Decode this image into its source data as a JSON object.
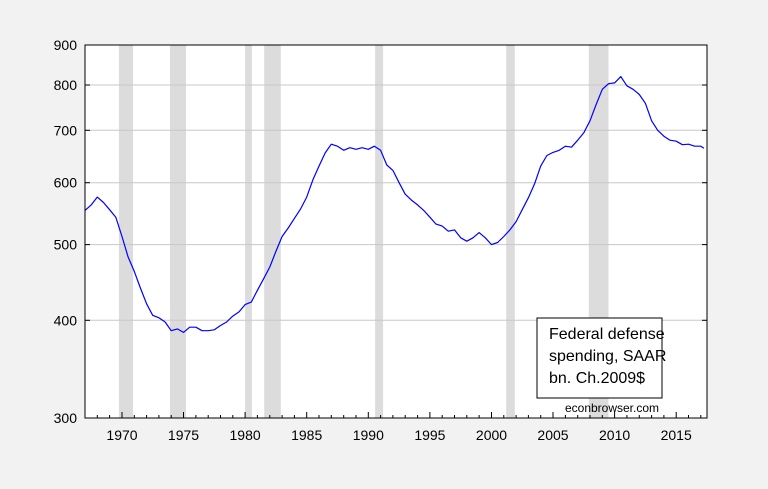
{
  "chart_data": {
    "type": "line",
    "scale_y": "log",
    "grid": "horizontal",
    "xlim": [
      1967,
      2017.5
    ],
    "ylim": [
      300,
      900
    ],
    "x_ticks": [
      1970,
      1975,
      1980,
      1985,
      1990,
      1995,
      2000,
      2005,
      2010,
      2015
    ],
    "y_ticks": [
      300,
      400,
      500,
      600,
      700,
      800,
      900
    ],
    "recessions": [
      [
        1969.75,
        1970.9
      ],
      [
        1973.9,
        1975.2
      ],
      [
        1980.0,
        1980.55
      ],
      [
        1981.55,
        1982.9
      ],
      [
        1990.55,
        1991.2
      ],
      [
        2001.2,
        2001.9
      ],
      [
        2007.9,
        2009.5
      ]
    ],
    "legend_lines": [
      "Federal defense",
      "spending, SAAR",
      "bn. Ch.2009$"
    ],
    "legend_position": "bottom-right",
    "source": "econbrowser.com",
    "line_color": "#0000ff",
    "recession_color": "#dcdcdc",
    "series": [
      {
        "x": [
          1967.0,
          1967.5,
          1968.0,
          1968.5,
          1969.0,
          1969.5,
          1970.0,
          1970.5,
          1971.0,
          1971.5,
          1972.0,
          1972.5,
          1973.0,
          1973.5,
          1974.0,
          1974.5,
          1975.0,
          1975.5,
          1976.0,
          1976.5,
          1977.0,
          1977.5,
          1978.0,
          1978.5,
          1979.0,
          1979.5,
          1980.0,
          1980.5,
          1981.0,
          1981.5,
          1982.0,
          1982.5,
          1983.0,
          1983.5,
          1984.0,
          1984.5,
          1985.0,
          1985.5,
          1986.0,
          1986.5,
          1987.0,
          1987.5,
          1988.0,
          1988.5,
          1989.0,
          1989.5,
          1990.0,
          1990.5,
          1991.0,
          1991.5,
          1992.0,
          1992.5,
          1993.0,
          1993.5,
          1994.0,
          1994.5,
          1995.0,
          1995.5,
          1996.0,
          1996.5,
          1997.0,
          1997.5,
          1998.0,
          1998.5,
          1999.0,
          1999.5,
          2000.0,
          2000.5,
          2001.0,
          2001.5,
          2002.0,
          2002.5,
          2003.0,
          2003.5,
          2004.0,
          2004.5,
          2005.0,
          2005.5,
          2006.0,
          2006.5,
          2007.0,
          2007.5,
          2008.0,
          2008.5,
          2009.0,
          2009.5,
          2010.0,
          2010.5,
          2011.0,
          2011.5,
          2012.0,
          2012.5,
          2013.0,
          2013.5,
          2014.0,
          2014.5,
          2015.0,
          2015.5,
          2016.0,
          2016.5,
          2017.0,
          2017.25
        ],
        "values": [
          553,
          562,
          575,
          566,
          554,
          542,
          512,
          482,
          462,
          440,
          420,
          406,
          403,
          398,
          388,
          390,
          386,
          392,
          392,
          388,
          388,
          389,
          394,
          398,
          405,
          410,
          419,
          422,
          437,
          452,
          468,
          490,
          512,
          525,
          540,
          555,
          575,
          605,
          630,
          655,
          672,
          668,
          660,
          665,
          662,
          665,
          662,
          668,
          660,
          632,
          622,
          600,
          580,
          570,
          562,
          553,
          542,
          531,
          528,
          520,
          522,
          510,
          505,
          510,
          518,
          510,
          500,
          503,
          512,
          522,
          535,
          554,
          574,
          598,
          630,
          650,
          656,
          660,
          668,
          666,
          680,
          695,
          720,
          755,
          790,
          803,
          805,
          820,
          798,
          790,
          778,
          758,
          720,
          700,
          688,
          680,
          678,
          671,
          672,
          668,
          668,
          664
        ]
      }
    ]
  }
}
